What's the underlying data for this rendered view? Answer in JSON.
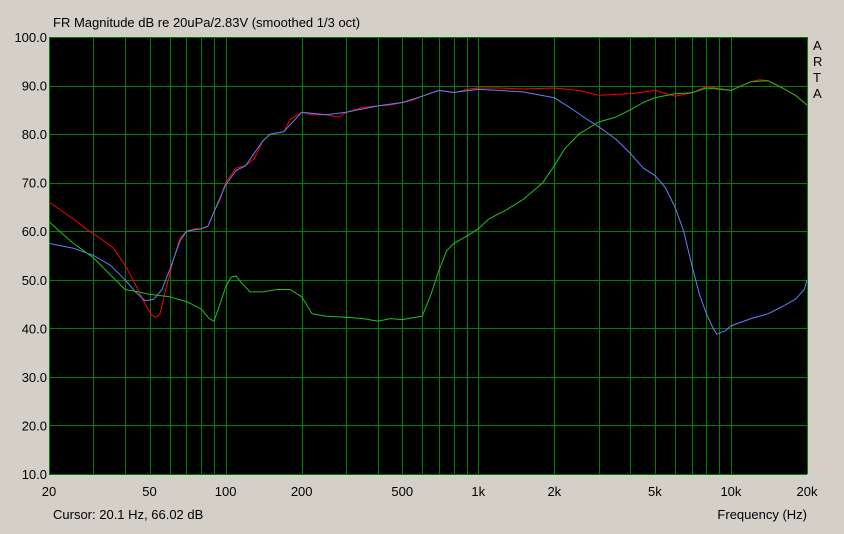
{
  "chart_data": {
    "type": "line",
    "title": "FR Magnitude dB re 20uPa/2.83V (smoothed 1/3 oct)",
    "xlabel": "Frequency (Hz)",
    "ylabel": "",
    "xscale": "log",
    "xlim": [
      20,
      20000
    ],
    "ylim": [
      10,
      100
    ],
    "grid": true,
    "legend": "none",
    "watermark": [
      "A",
      "R",
      "T",
      "A"
    ],
    "cursor_text": "Cursor: 20.1 Hz, 66.02 dB",
    "x_ticks": [
      {
        "value": 20,
        "label": "20"
      },
      {
        "value": 50,
        "label": "50"
      },
      {
        "value": 100,
        "label": "100"
      },
      {
        "value": 200,
        "label": "200"
      },
      {
        "value": 500,
        "label": "500"
      },
      {
        "value": 1000,
        "label": "1k"
      },
      {
        "value": 2000,
        "label": "2k"
      },
      {
        "value": 5000,
        "label": "5k"
      },
      {
        "value": 10000,
        "label": "10k"
      },
      {
        "value": 20000,
        "label": "20k"
      }
    ],
    "y_ticks": [
      {
        "value": 10,
        "label": "10.0"
      },
      {
        "value": 20,
        "label": "20.0"
      },
      {
        "value": 30,
        "label": "30.0"
      },
      {
        "value": 40,
        "label": "40.0"
      },
      {
        "value": 50,
        "label": "50.0"
      },
      {
        "value": 60,
        "label": "60.0"
      },
      {
        "value": 70,
        "label": "70.0"
      },
      {
        "value": 80,
        "label": "80.0"
      },
      {
        "value": 90,
        "label": "90.0"
      },
      {
        "value": 100,
        "label": "100.0"
      }
    ],
    "colors": {
      "background": "#d4d0c8",
      "plot_background": "#000000",
      "grid": "#008000"
    },
    "series": [
      {
        "color": "#ff0000",
        "points": [
          [
            20,
            66
          ],
          [
            22,
            64.5
          ],
          [
            25,
            62.5
          ],
          [
            28,
            60.5
          ],
          [
            32,
            58.5
          ],
          [
            36,
            56.5
          ],
          [
            40,
            53
          ],
          [
            44,
            49
          ],
          [
            48,
            45
          ],
          [
            51,
            42.7
          ],
          [
            53,
            42.3
          ],
          [
            55,
            43
          ],
          [
            58,
            48
          ],
          [
            62,
            54
          ],
          [
            66,
            58.5
          ],
          [
            70,
            60
          ],
          [
            75,
            60.5
          ],
          [
            80,
            60.5
          ],
          [
            85,
            61
          ],
          [
            90,
            64
          ],
          [
            95,
            66.5
          ],
          [
            100,
            70
          ],
          [
            110,
            73
          ],
          [
            120,
            73.5
          ],
          [
            130,
            75
          ],
          [
            140,
            78.5
          ],
          [
            150,
            80
          ],
          [
            170,
            80.5
          ],
          [
            180,
            83
          ],
          [
            200,
            84.5
          ],
          [
            220,
            84
          ],
          [
            250,
            84
          ],
          [
            280,
            83.5
          ],
          [
            300,
            84.5
          ],
          [
            350,
            85.5
          ],
          [
            400,
            85.8
          ],
          [
            450,
            86
          ],
          [
            500,
            86.5
          ],
          [
            550,
            87
          ],
          [
            600,
            87.8
          ],
          [
            650,
            88.5
          ],
          [
            700,
            89
          ],
          [
            800,
            88.5
          ],
          [
            900,
            89.2
          ],
          [
            1000,
            89.5
          ],
          [
            1200,
            89.5
          ],
          [
            1500,
            89.3
          ],
          [
            2000,
            89.5
          ],
          [
            2500,
            89
          ],
          [
            3000,
            88
          ],
          [
            4000,
            88.3
          ],
          [
            5000,
            89
          ],
          [
            6000,
            87.8
          ],
          [
            7000,
            88.5
          ],
          [
            8000,
            89.8
          ],
          [
            10000,
            89
          ],
          [
            12000,
            90.8
          ],
          [
            13000,
            91.2
          ],
          [
            14000,
            91
          ],
          [
            16000,
            89.5
          ],
          [
            18000,
            88
          ],
          [
            20000,
            86
          ]
        ]
      },
      {
        "color": "#6080ff",
        "points": [
          [
            20,
            57.5
          ],
          [
            25,
            56.5
          ],
          [
            30,
            55
          ],
          [
            35,
            53
          ],
          [
            40,
            50
          ],
          [
            44,
            47.5
          ],
          [
            48,
            45.7
          ],
          [
            52,
            46
          ],
          [
            56,
            48
          ],
          [
            60,
            52
          ],
          [
            66,
            58
          ],
          [
            70,
            60
          ],
          [
            80,
            60.5
          ],
          [
            85,
            61
          ],
          [
            90,
            64
          ],
          [
            100,
            69.5
          ],
          [
            110,
            72.5
          ],
          [
            120,
            73.5
          ],
          [
            140,
            78.5
          ],
          [
            150,
            80
          ],
          [
            170,
            80.5
          ],
          [
            200,
            84.5
          ],
          [
            250,
            84
          ],
          [
            300,
            84.5
          ],
          [
            400,
            85.8
          ],
          [
            500,
            86.5
          ],
          [
            600,
            87.8
          ],
          [
            700,
            89
          ],
          [
            800,
            88.6
          ],
          [
            1000,
            89.2
          ],
          [
            1200,
            89
          ],
          [
            1500,
            88.7
          ],
          [
            2000,
            87.5
          ],
          [
            2300,
            85.5
          ],
          [
            2700,
            83
          ],
          [
            3000,
            81.5
          ],
          [
            3500,
            79
          ],
          [
            4000,
            76
          ],
          [
            4500,
            73
          ],
          [
            5000,
            71.5
          ],
          [
            5500,
            69
          ],
          [
            6000,
            65
          ],
          [
            6500,
            60
          ],
          [
            7000,
            53
          ],
          [
            7500,
            47
          ],
          [
            8000,
            43
          ],
          [
            8500,
            40
          ],
          [
            8800,
            38.8
          ],
          [
            9500,
            39.5
          ],
          [
            10000,
            40.5
          ],
          [
            12000,
            42
          ],
          [
            14000,
            43
          ],
          [
            16000,
            44.5
          ],
          [
            18000,
            46
          ],
          [
            19500,
            48
          ],
          [
            20000,
            50
          ]
        ]
      },
      {
        "color": "#20c020",
        "points": [
          [
            20,
            62
          ],
          [
            22,
            60
          ],
          [
            25,
            57.5
          ],
          [
            30,
            54.5
          ],
          [
            35,
            51
          ],
          [
            40,
            48
          ],
          [
            45,
            47.5
          ],
          [
            50,
            47
          ],
          [
            60,
            46.5
          ],
          [
            70,
            45.5
          ],
          [
            80,
            44
          ],
          [
            86,
            42
          ],
          [
            90,
            41.5
          ],
          [
            95,
            45
          ],
          [
            100,
            48.5
          ],
          [
            105,
            50.5
          ],
          [
            110,
            50.8
          ],
          [
            115,
            49.5
          ],
          [
            125,
            47.5
          ],
          [
            140,
            47.5
          ],
          [
            160,
            48
          ],
          [
            180,
            48
          ],
          [
            200,
            46.5
          ],
          [
            220,
            43
          ],
          [
            250,
            42.5
          ],
          [
            300,
            42.3
          ],
          [
            350,
            42
          ],
          [
            400,
            41.5
          ],
          [
            450,
            42
          ],
          [
            500,
            41.8
          ],
          [
            550,
            42.2
          ],
          [
            600,
            42.5
          ],
          [
            650,
            47
          ],
          [
            700,
            52
          ],
          [
            750,
            56
          ],
          [
            800,
            57.5
          ],
          [
            900,
            59
          ],
          [
            1000,
            60.5
          ],
          [
            1100,
            62.5
          ],
          [
            1300,
            64.5
          ],
          [
            1500,
            66.5
          ],
          [
            1800,
            70
          ],
          [
            2000,
            73.5
          ],
          [
            2200,
            77
          ],
          [
            2500,
            80
          ],
          [
            3000,
            82.5
          ],
          [
            3500,
            83.5
          ],
          [
            4000,
            85
          ],
          [
            4500,
            86.5
          ],
          [
            5000,
            87.5
          ],
          [
            6000,
            88.3
          ],
          [
            7000,
            88.5
          ],
          [
            8000,
            89.5
          ],
          [
            10000,
            89
          ],
          [
            12000,
            90.8
          ],
          [
            14000,
            91
          ],
          [
            16000,
            89.5
          ],
          [
            18000,
            88
          ],
          [
            20000,
            86
          ]
        ]
      }
    ]
  }
}
